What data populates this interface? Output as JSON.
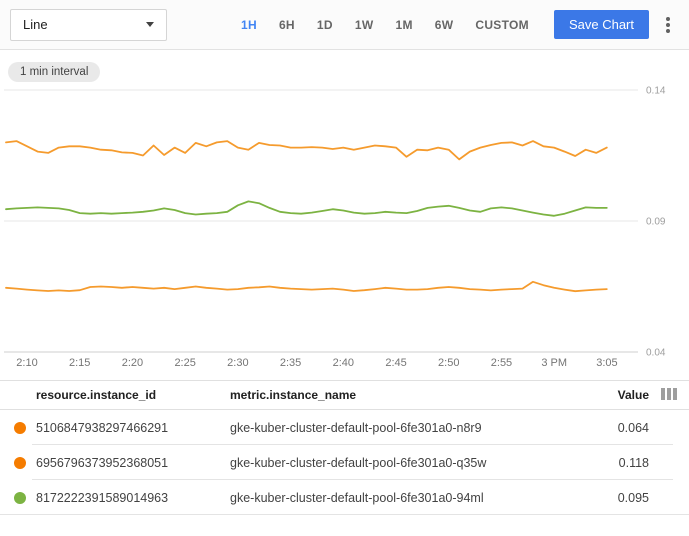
{
  "toolbar": {
    "chart_type_value": "Line",
    "ranges": [
      {
        "label": "1H",
        "active": true
      },
      {
        "label": "6H",
        "active": false
      },
      {
        "label": "1D",
        "active": false
      },
      {
        "label": "1W",
        "active": false
      },
      {
        "label": "1M",
        "active": false
      },
      {
        "label": "6W",
        "active": false
      },
      {
        "label": "CUSTOM",
        "active": false
      }
    ],
    "save_label": "Save Chart",
    "more_icon": "kebab-menu-icon"
  },
  "chip": {
    "label": "1 min interval"
  },
  "colors": {
    "accent_blue": "#4285f4",
    "save_button": "#3b78e7",
    "orange_series": "#f59b2d",
    "green_series": "#7cb342",
    "orange_dot": "#f57c00",
    "green_dot": "#7cb342",
    "grid": "#e7e7e7",
    "axis_text": "#757575"
  },
  "chart_data": {
    "type": "line",
    "title": "",
    "interval_label": "1 min interval",
    "grid": true,
    "legend_position": "table-below",
    "ylim": [
      0.04,
      0.14
    ],
    "y_ticks": [
      0.14,
      0.09,
      0.04
    ],
    "x_ticks": [
      "2:10",
      "2:15",
      "2:20",
      "2:25",
      "2:30",
      "2:35",
      "2:40",
      "2:45",
      "2:50",
      "2:55",
      "3 PM",
      "3:05"
    ],
    "series": [
      {
        "name": "gke-kuber-cluster-default-pool-6fe301a0-q35w",
        "color": "#f59b2d",
        "latest_value": 0.118,
        "values": [
          0.12,
          0.1205,
          0.1185,
          0.1165,
          0.116,
          0.118,
          0.1185,
          0.1185,
          0.118,
          0.1172,
          0.117,
          0.1162,
          0.116,
          0.115,
          0.1188,
          0.1152,
          0.118,
          0.116,
          0.1198,
          0.1185,
          0.12,
          0.1205,
          0.118,
          0.1172,
          0.1198,
          0.119,
          0.1188,
          0.118,
          0.118,
          0.1182,
          0.118,
          0.1175,
          0.118,
          0.1172,
          0.118,
          0.1188,
          0.1185,
          0.118,
          0.1145,
          0.1172,
          0.117,
          0.118,
          0.1172,
          0.1135,
          0.1165,
          0.118,
          0.119,
          0.1198,
          0.12,
          0.1188,
          0.1205,
          0.1185,
          0.118,
          0.1165,
          0.1148,
          0.1172,
          0.116,
          0.118
        ]
      },
      {
        "name": "gke-kuber-cluster-default-pool-6fe301a0-94ml",
        "color": "#7cb342",
        "latest_value": 0.095,
        "values": [
          0.0945,
          0.0948,
          0.095,
          0.0952,
          0.095,
          0.0948,
          0.0942,
          0.093,
          0.0928,
          0.093,
          0.0928,
          0.093,
          0.0932,
          0.0935,
          0.094,
          0.0948,
          0.0942,
          0.093,
          0.0925,
          0.0928,
          0.093,
          0.0935,
          0.096,
          0.0975,
          0.0968,
          0.095,
          0.0935,
          0.093,
          0.0928,
          0.0932,
          0.0938,
          0.0945,
          0.094,
          0.0932,
          0.0928,
          0.093,
          0.0935,
          0.0932,
          0.093,
          0.0938,
          0.095,
          0.0955,
          0.0958,
          0.095,
          0.094,
          0.0935,
          0.0948,
          0.0952,
          0.0948,
          0.094,
          0.0932,
          0.0925,
          0.092,
          0.0928,
          0.094,
          0.0952,
          0.095,
          0.095
        ]
      },
      {
        "name": "gke-kuber-cluster-default-pool-6fe301a0-n8r9",
        "color": "#f59b2d",
        "latest_value": 0.064,
        "values": [
          0.0645,
          0.0642,
          0.0638,
          0.0635,
          0.0633,
          0.0635,
          0.0633,
          0.0636,
          0.0648,
          0.065,
          0.0648,
          0.0645,
          0.0648,
          0.0645,
          0.0642,
          0.0645,
          0.064,
          0.0645,
          0.065,
          0.0645,
          0.0642,
          0.0638,
          0.064,
          0.0645,
          0.0647,
          0.065,
          0.0645,
          0.0642,
          0.064,
          0.0638,
          0.064,
          0.0642,
          0.0638,
          0.0633,
          0.0636,
          0.064,
          0.0645,
          0.0642,
          0.0638,
          0.0638,
          0.064,
          0.0645,
          0.0648,
          0.0645,
          0.064,
          0.0638,
          0.0635,
          0.0638,
          0.064,
          0.0642,
          0.0668,
          0.0655,
          0.0645,
          0.0638,
          0.0632,
          0.0635,
          0.0638,
          0.064
        ]
      }
    ]
  },
  "table": {
    "columns": [
      "resource.instance_id",
      "metric.instance_name",
      "Value"
    ],
    "rows": [
      {
        "color": "#f57c00",
        "instance_id": "5106847938297466291",
        "instance_name": "gke-kuber-cluster-default-pool-6fe301a0-n8r9",
        "value": "0.064"
      },
      {
        "color": "#f57c00",
        "instance_id": "6956796373952368051",
        "instance_name": "gke-kuber-cluster-default-pool-6fe301a0-q35w",
        "value": "0.118"
      },
      {
        "color": "#7cb342",
        "instance_id": "8172222391589014963",
        "instance_name": "gke-kuber-cluster-default-pool-6fe301a0-94ml",
        "value": "0.095"
      }
    ]
  }
}
